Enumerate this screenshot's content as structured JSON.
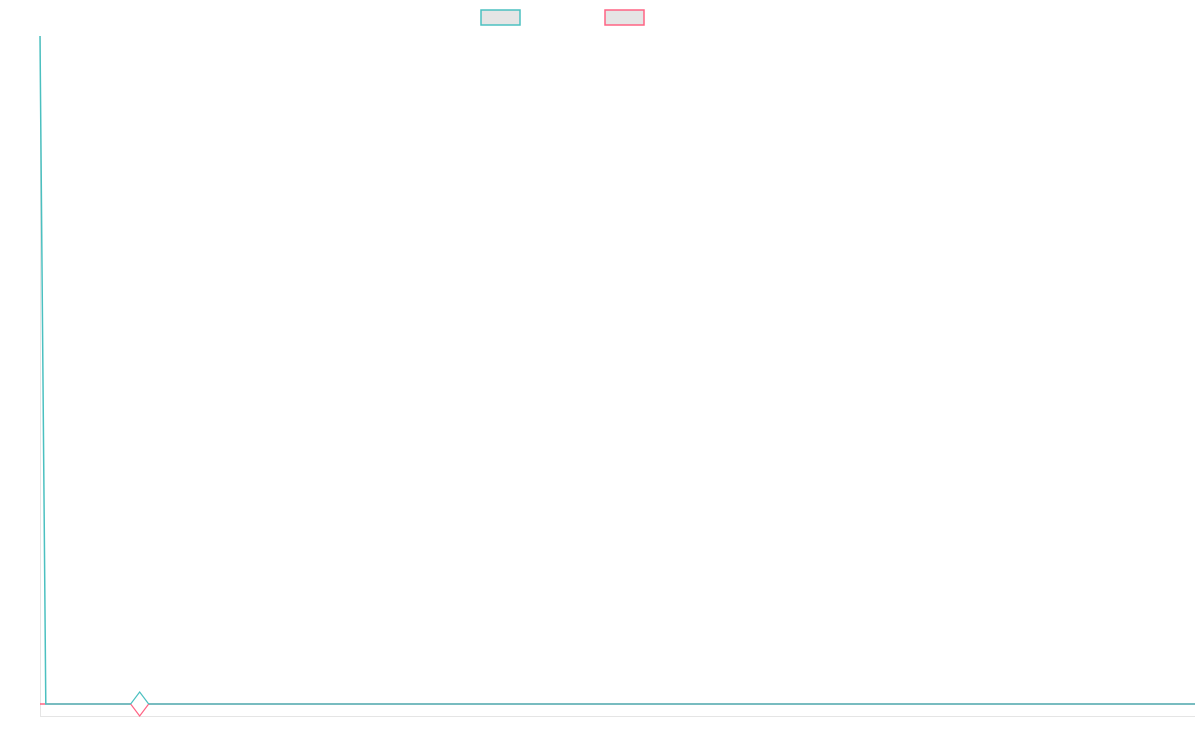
{
  "chart_data": {
    "type": "line",
    "legend": "top-center",
    "grid": false,
    "ylim": [
      -1.8,
      100
    ],
    "n_points": 200,
    "marker_index": 17,
    "series": [
      {
        "color": "#4bc0c0",
        "values_sparse": {
          "0": 100
        },
        "default": 0
      },
      {
        "color": "#ff6384",
        "values_sparse": {},
        "default": 0
      }
    ]
  },
  "colors": {
    "axis": "#e5e5e5",
    "legend_fill": "#e5e5e5"
  }
}
